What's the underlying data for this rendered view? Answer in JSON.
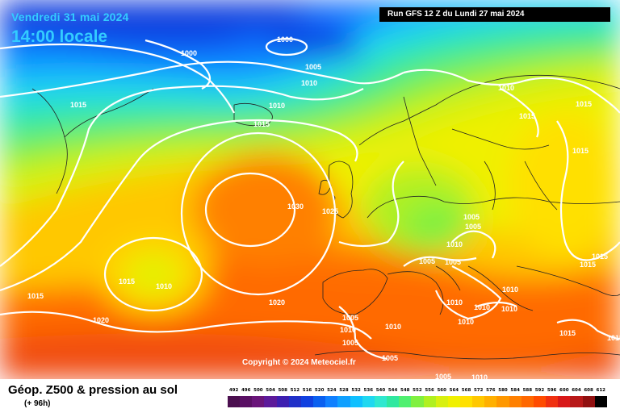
{
  "header": {
    "date": "Vendredi 31 mai 2024",
    "time": "14:00 locale",
    "run": "Run GFS 12 Z du Lundi 27 mai 2024"
  },
  "copyright": "Copyright © 2024 Meteociel.fr",
  "footer": {
    "title": "Géop. Z500 & pression au sol",
    "subtitle": "(+ 96h)"
  },
  "isobar_labels": [
    "1000",
    "1000",
    "1005",
    "1010",
    "1015",
    "1010",
    "1015",
    "1030",
    "1025",
    "1015",
    "1010",
    "1015",
    "1020",
    "1020",
    "1010",
    "1015",
    "1015",
    "1015",
    "1005",
    "1005",
    "1010",
    "1005",
    "1005",
    "1010",
    "1010",
    "1010",
    "1005",
    "1010",
    "1005",
    "1010",
    "1010",
    "1005",
    "1005",
    "1010",
    "1015",
    "1015",
    "1015",
    "1015",
    "1010"
  ],
  "scale": {
    "labels": [
      "492",
      "496",
      "500",
      "504",
      "508",
      "512",
      "516",
      "520",
      "524",
      "528",
      "532",
      "536",
      "540",
      "544",
      "548",
      "552",
      "556",
      "560",
      "564",
      "568",
      "572",
      "576",
      "580",
      "584",
      "588",
      "592",
      "596",
      "600",
      "604",
      "608",
      "612"
    ],
    "colors": [
      "#4b0f4f",
      "#5a1064",
      "#6a157a",
      "#5d1a9a",
      "#3d1fb0",
      "#2030c8",
      "#1040e0",
      "#0a60f0",
      "#1080ff",
      "#10a0ff",
      "#10c0ff",
      "#20d8f0",
      "#30e8d0",
      "#30e8a0",
      "#50f070",
      "#80f040",
      "#b0f020",
      "#d8f010",
      "#f0f000",
      "#ffe000",
      "#ffc800",
      "#ffb000",
      "#ff9800",
      "#ff8000",
      "#ff6800",
      "#ff4c00",
      "#f03010",
      "#d81818",
      "#b81818",
      "#901010",
      "#000000"
    ]
  },
  "colors": {
    "run_box": "#000000",
    "date_text": "#33ccff"
  }
}
